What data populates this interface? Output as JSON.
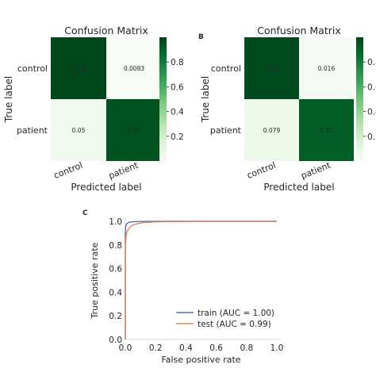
{
  "panels": {
    "b_letter": "B",
    "c_letter": "C"
  },
  "colorbar": {
    "ticks": [
      0.8,
      0.6,
      0.4,
      0.2
    ],
    "colors": [
      "#f7fcf5",
      "#e5f5e0",
      "#c7e9c0",
      "#a1d99b",
      "#74c476",
      "#41ab5d",
      "#238b45",
      "#006d2c",
      "#00441b"
    ]
  },
  "chart_data": [
    {
      "type": "heatmap",
      "title": "Confusion Matrix",
      "xlabel": "Predicted label",
      "ylabel": "True label",
      "x_categories": [
        "control",
        "patient"
      ],
      "y_categories": [
        "control",
        "patient"
      ],
      "values": [
        [
          0.99,
          0.0083
        ],
        [
          0.05,
          0.95
        ]
      ],
      "cell_labels": [
        [
          "0.99",
          "0.0083"
        ],
        [
          "0.05",
          "0.95"
        ]
      ],
      "colorbar_range": [
        0,
        1
      ]
    },
    {
      "type": "heatmap",
      "title": "Confusion Matrix",
      "xlabel": "Predicted label",
      "ylabel": "True label",
      "x_categories": [
        "control",
        "patient"
      ],
      "y_categories": [
        "control",
        "patient"
      ],
      "values": [
        [
          0.98,
          0.016
        ],
        [
          0.079,
          0.92
        ]
      ],
      "cell_labels": [
        [
          "0.98",
          "0.016"
        ],
        [
          "0.079",
          "0.92"
        ]
      ],
      "colorbar_range": [
        0,
        1
      ]
    },
    {
      "type": "line",
      "xlabel": "False positive rate",
      "ylabel": "True positive rate",
      "xlim": [
        0,
        1
      ],
      "ylim": [
        0,
        1
      ],
      "xticks": [
        "0.0",
        "0.2",
        "0.4",
        "0.6",
        "0.8",
        "1.0"
      ],
      "yticks": [
        "0.0",
        "0.2",
        "0.4",
        "0.6",
        "0.8",
        "1.0"
      ],
      "legend_position": "lower-right",
      "series": [
        {
          "name": "train (AUC = 1.00)",
          "color": "#4c72b0",
          "x": [
            0,
            0,
            0.002,
            0.005,
            0.01,
            0.02,
            0.04,
            0.08,
            0.15,
            0.3,
            0.6,
            1.0
          ],
          "y": [
            0,
            0.9,
            0.95,
            0.97,
            0.98,
            0.99,
            0.995,
            0.998,
            0.999,
            1.0,
            1.0,
            1.0
          ]
        },
        {
          "name": "test (AUC = 0.99)",
          "color": "#dd8452",
          "x": [
            0,
            0,
            0.005,
            0.01,
            0.02,
            0.03,
            0.05,
            0.08,
            0.12,
            0.2,
            0.35,
            0.6,
            1.0
          ],
          "y": [
            0,
            0.78,
            0.88,
            0.91,
            0.93,
            0.95,
            0.97,
            0.98,
            0.99,
            0.995,
            0.998,
            1.0,
            1.0
          ]
        }
      ]
    }
  ]
}
